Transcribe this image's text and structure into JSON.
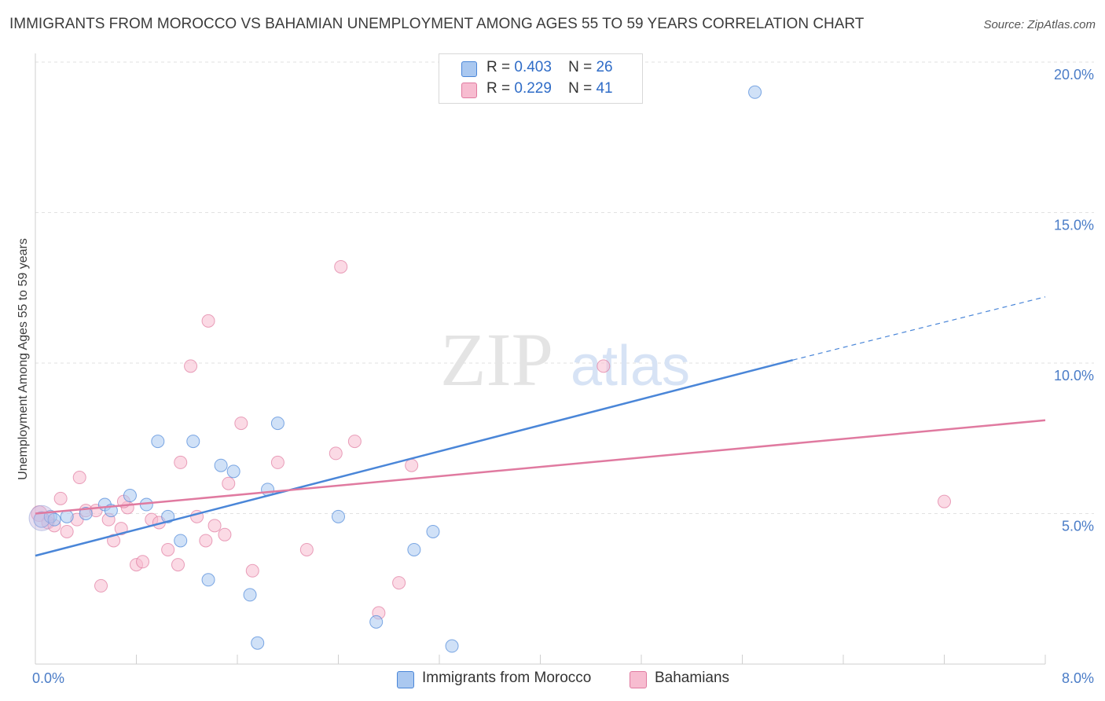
{
  "header": {
    "title": "IMMIGRANTS FROM MOROCCO VS BAHAMIAN UNEMPLOYMENT AMONG AGES 55 TO 59 YEARS CORRELATION CHART",
    "source": "Source: ZipAtlas.com"
  },
  "watermark": {
    "zip": "ZIP",
    "atlas": "atlas"
  },
  "legend": {
    "r_label": "R =",
    "n_label": "N =",
    "rows": [
      {
        "r": "0.403",
        "n": "26",
        "color": "#aac8f0"
      },
      {
        "r": "0.229",
        "n": "41",
        "color": "#f7bcd0"
      }
    ]
  },
  "chart_data": {
    "type": "scatter",
    "xlabel": "",
    "ylabel": "Unemployment Among Ages 55 to 59 years",
    "xlim": [
      0,
      8
    ],
    "ylim": [
      0,
      20
    ],
    "x_tick_labels": [
      "0.0%",
      "8.0%"
    ],
    "y_tick_labels": [
      "5.0%",
      "10.0%",
      "15.0%",
      "20.0%"
    ],
    "y_ticks": [
      5,
      10,
      15,
      20
    ],
    "grid": "horizontal dashed",
    "legend_placement": "top-center",
    "series": [
      {
        "name": "Immigrants from Morocco",
        "color": "#4a86d8",
        "fill": "#aac8f0",
        "r": 0.403,
        "n": 26,
        "points": [
          [
            0.05,
            4.8
          ],
          [
            0.12,
            4.9
          ],
          [
            0.25,
            4.9
          ],
          [
            0.4,
            5.0
          ],
          [
            0.55,
            5.3
          ],
          [
            0.6,
            5.1
          ],
          [
            0.75,
            5.6
          ],
          [
            0.88,
            5.3
          ],
          [
            0.97,
            7.4
          ],
          [
            1.05,
            4.9
          ],
          [
            1.15,
            4.1
          ],
          [
            1.25,
            7.4
          ],
          [
            1.37,
            2.8
          ],
          [
            1.47,
            6.6
          ],
          [
            1.57,
            6.4
          ],
          [
            1.7,
            2.3
          ],
          [
            1.76,
            0.7
          ],
          [
            1.84,
            5.8
          ],
          [
            1.92,
            8.0
          ],
          [
            2.4,
            4.9
          ],
          [
            2.7,
            1.4
          ],
          [
            3.0,
            3.8
          ],
          [
            3.15,
            4.4
          ],
          [
            3.3,
            0.6
          ],
          [
            5.7,
            19.0
          ],
          [
            0.15,
            4.8
          ]
        ],
        "trend": {
          "x0": 0.0,
          "y0": 3.6,
          "x1": 6.0,
          "y1": 10.1,
          "dashed_to_x": 8.0,
          "dashed_to_y": 12.2
        }
      },
      {
        "name": "Bahamians",
        "color": "#e07aa0",
        "fill": "#f7bcd0",
        "r": 0.229,
        "n": 41,
        "points": [
          [
            0.03,
            5.0
          ],
          [
            0.1,
            4.7
          ],
          [
            0.15,
            4.6
          ],
          [
            0.2,
            5.5
          ],
          [
            0.25,
            4.4
          ],
          [
            0.33,
            4.8
          ],
          [
            0.4,
            5.1
          ],
          [
            0.35,
            6.2
          ],
          [
            0.48,
            5.1
          ],
          [
            0.52,
            2.6
          ],
          [
            0.58,
            4.8
          ],
          [
            0.62,
            4.1
          ],
          [
            0.68,
            4.5
          ],
          [
            0.73,
            5.2
          ],
          [
            0.8,
            3.3
          ],
          [
            0.85,
            3.4
          ],
          [
            0.92,
            4.8
          ],
          [
            0.98,
            4.7
          ],
          [
            1.05,
            3.8
          ],
          [
            1.13,
            3.3
          ],
          [
            1.15,
            6.7
          ],
          [
            1.23,
            9.9
          ],
          [
            1.28,
            4.9
          ],
          [
            1.35,
            4.1
          ],
          [
            1.37,
            11.4
          ],
          [
            1.42,
            4.6
          ],
          [
            1.5,
            4.3
          ],
          [
            1.53,
            6.0
          ],
          [
            1.63,
            8.0
          ],
          [
            1.72,
            3.1
          ],
          [
            1.92,
            6.7
          ],
          [
            2.15,
            3.8
          ],
          [
            2.38,
            7.0
          ],
          [
            2.42,
            13.2
          ],
          [
            2.53,
            7.4
          ],
          [
            2.72,
            1.7
          ],
          [
            2.88,
            2.7
          ],
          [
            2.98,
            6.6
          ],
          [
            4.5,
            9.9
          ],
          [
            7.2,
            5.4
          ],
          [
            0.7,
            5.4
          ]
        ],
        "trend": {
          "x0": 0.0,
          "y0": 5.0,
          "x1": 8.0,
          "y1": 8.1
        }
      }
    ]
  }
}
